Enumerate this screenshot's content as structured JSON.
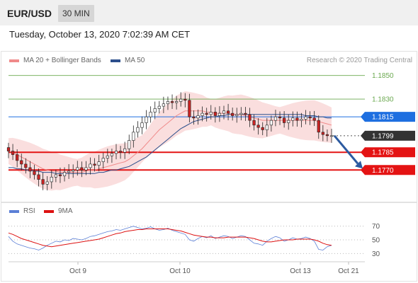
{
  "header": {
    "pair": "EUR/USD",
    "timeframe": "30 MIN"
  },
  "date_line": "Tuesday, October 13, 2020 7:02:39 AM CET",
  "legend": {
    "bb": {
      "label": "MA 20 + Bollinger Bands",
      "color": "#f08a8a"
    },
    "ma50": {
      "label": "MA 50",
      "color": "#2c4f8c"
    }
  },
  "credit": "Research © 2020 Trading Central",
  "rsi_legend": {
    "rsi": {
      "label": "RSI",
      "color": "#5b7fd6"
    },
    "ma9": {
      "label": "9MA",
      "color": "#dd1111"
    }
  },
  "colors": {
    "up": "#ffffff",
    "down": "#cc2222",
    "wick": "#222222",
    "target_blue": "#1e6fe0",
    "level_red": "#e41313",
    "resistance_green": "#6aa84f",
    "current_dark": "#333333"
  },
  "chart_data": [
    {
      "type": "candlestick",
      "title": "",
      "ylim": [
        1.1745,
        1.186
      ],
      "x_ticks": [
        "Oct 9",
        "Oct 10",
        "Oct 13",
        "Oct 21"
      ],
      "levels": [
        {
          "label": "1.1850",
          "value": 1.185,
          "kind": "resistance"
        },
        {
          "label": "1.1830",
          "value": 1.183,
          "kind": "resistance"
        },
        {
          "label": "1.1815",
          "value": 1.1815,
          "kind": "pivot"
        },
        {
          "label": "1.1799",
          "value": 1.1799,
          "kind": "current"
        },
        {
          "label": "1.1785",
          "value": 1.1785,
          "kind": "support"
        },
        {
          "label": "1.1770",
          "value": 1.177,
          "kind": "support"
        }
      ],
      "forecast_arrow": {
        "from": 1.1799,
        "to": 1.177
      },
      "close_series": [
        1.1786,
        1.1783,
        1.1778,
        1.1775,
        1.1772,
        1.1769,
        1.1766,
        1.1762,
        1.1758,
        1.176,
        1.1764,
        1.1766,
        1.1765,
        1.1768,
        1.1769,
        1.177,
        1.1772,
        1.177,
        1.1772,
        1.1775,
        1.1774,
        1.1777,
        1.178,
        1.1782,
        1.1784,
        1.1786,
        1.1785,
        1.1788,
        1.1795,
        1.1802,
        1.1806,
        1.181,
        1.1815,
        1.1819,
        1.1822,
        1.1824,
        1.1826,
        1.1828,
        1.1827,
        1.1828,
        1.183,
        1.1829,
        1.1815,
        1.1814,
        1.1816,
        1.1818,
        1.1817,
        1.1819,
        1.1816,
        1.1818,
        1.182,
        1.1818,
        1.1816,
        1.1817,
        1.1818,
        1.1817,
        1.1812,
        1.1808,
        1.1806,
        1.1804,
        1.1808,
        1.1812,
        1.1815,
        1.1814,
        1.181,
        1.1812,
        1.1814,
        1.1812,
        1.1813,
        1.1815,
        1.1814,
        1.1812,
        1.1802,
        1.18,
        1.1799,
        1.1799
      ],
      "series": [
        {
          "name": "MA 20",
          "values": [
            1.1786,
            1.1785,
            1.1783,
            1.1781,
            1.1779,
            1.1777,
            1.1775,
            1.1773,
            1.1771,
            1.177,
            1.1769,
            1.1769,
            1.1768,
            1.1768,
            1.1768,
            1.1768,
            1.1768,
            1.1768,
            1.1769,
            1.177,
            1.177,
            1.1771,
            1.1772,
            1.1773,
            1.1774,
            1.1775,
            1.1776,
            1.1777,
            1.1779,
            1.1782,
            1.1785,
            1.1788,
            1.1792,
            1.1796,
            1.18,
            1.1804,
            1.1807,
            1.181,
            1.1813,
            1.1816,
            1.1818,
            1.182,
            1.182,
            1.182,
            1.182,
            1.182,
            1.1819,
            1.1819,
            1.1818,
            1.1818,
            1.1818,
            1.1818,
            1.1817,
            1.1817,
            1.1817,
            1.1816,
            1.1815,
            1.1814,
            1.1813,
            1.1812,
            1.1812,
            1.1812,
            1.1812,
            1.1812,
            1.1812,
            1.1812,
            1.1812,
            1.1812,
            1.1812,
            1.1812,
            1.1812,
            1.1812,
            1.1811,
            1.181,
            1.1809,
            1.1808
          ]
        },
        {
          "name": "MA 50",
          "values": [
            1.1772,
            1.1772,
            1.1771,
            1.1771,
            1.177,
            1.177,
            1.1769,
            1.1769,
            1.1768,
            1.1768,
            1.1768,
            1.1767,
            1.1767,
            1.1767,
            1.1767,
            1.1767,
            1.1767,
            1.1767,
            1.1767,
            1.1767,
            1.1767,
            1.1768,
            1.1768,
            1.1769,
            1.177,
            1.177,
            1.1771,
            1.1772,
            1.1773,
            1.1775,
            1.1777,
            1.1779,
            1.1781,
            1.1784,
            1.1787,
            1.179,
            1.1793,
            1.1796,
            1.1799,
            1.1802,
            1.1805,
            1.1807,
            1.1809,
            1.1811,
            1.1812,
            1.1813,
            1.1814,
            1.1815,
            1.1815,
            1.1816,
            1.1816,
            1.1817,
            1.1817,
            1.1817,
            1.1817,
            1.1817,
            1.1817,
            1.1817,
            1.1817,
            1.1817,
            1.1817,
            1.1817,
            1.1817,
            1.1817,
            1.1817,
            1.1817,
            1.1817,
            1.1817,
            1.1817,
            1.1816,
            1.1816,
            1.1816,
            1.1815,
            1.1815,
            1.1814,
            1.1814
          ]
        }
      ]
    },
    {
      "type": "line",
      "title": "",
      "ylim": [
        20,
        80
      ],
      "y_ticks": [
        "70",
        "50",
        "30"
      ],
      "series": [
        {
          "name": "RSI",
          "values": [
            55,
            48,
            44,
            42,
            40,
            38,
            37,
            35,
            38,
            42,
            45,
            48,
            47,
            50,
            49,
            52,
            51,
            50,
            52,
            55,
            56,
            58,
            60,
            62,
            63,
            65,
            64,
            66,
            68,
            70,
            68,
            66,
            67,
            69,
            66,
            64,
            65,
            67,
            64,
            62,
            60,
            58,
            50,
            48,
            52,
            55,
            53,
            56,
            52,
            54,
            56,
            55,
            52,
            54,
            56,
            55,
            50,
            45,
            44,
            42,
            48,
            52,
            55,
            53,
            48,
            50,
            53,
            51,
            52,
            54,
            52,
            48,
            36,
            35,
            40,
            42
          ]
        },
        {
          "name": "9MA",
          "values": [
            60,
            58,
            55,
            52,
            50,
            48,
            46,
            44,
            42,
            41,
            40,
            41,
            42,
            43,
            44,
            45,
            46,
            47,
            48,
            49,
            50,
            51,
            53,
            55,
            57,
            59,
            60,
            62,
            63,
            64,
            65,
            65,
            66,
            66,
            66,
            66,
            66,
            66,
            65,
            64,
            63,
            61,
            59,
            57,
            56,
            55,
            54,
            54,
            53,
            53,
            53,
            54,
            54,
            54,
            54,
            54,
            53,
            52,
            50,
            48,
            47,
            47,
            48,
            49,
            50,
            50,
            50,
            51,
            51,
            51,
            51,
            50,
            48,
            45,
            43,
            42
          ]
        }
      ]
    }
  ]
}
